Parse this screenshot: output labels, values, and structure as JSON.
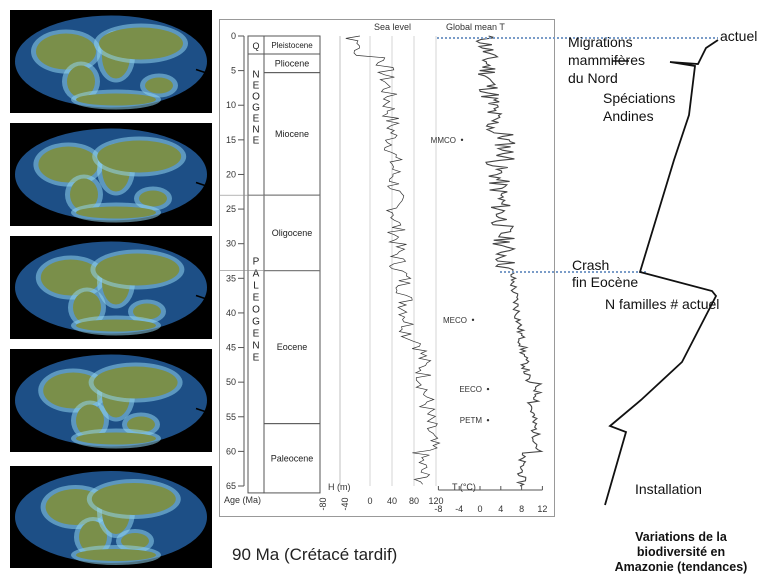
{
  "figure": {
    "age_axis_label": "Age (Ma)",
    "age_ticks": [
      "0",
      "5",
      "10",
      "15",
      "20",
      "25",
      "30",
      "35",
      "40",
      "45",
      "50",
      "55",
      "60",
      "65"
    ],
    "periods": [
      {
        "name": "Quaternary",
        "letters": "Q"
      },
      {
        "name": "Neogene",
        "letters": "N E O G E N E"
      },
      {
        "name": "Paleogene",
        "letters": "P A L E O G E N E"
      }
    ],
    "epochs": [
      {
        "label": "Pleistocene",
        "start_ma": 0,
        "end_ma": 2.6
      },
      {
        "label": "Pliocene",
        "start_ma": 2.6,
        "end_ma": 5.3
      },
      {
        "label": "Miocene",
        "start_ma": 5.3,
        "end_ma": 23
      },
      {
        "label": "Oligocene",
        "start_ma": 23,
        "end_ma": 33.9
      },
      {
        "label": "Eocene",
        "start_ma": 33.9,
        "end_ma": 56
      },
      {
        "label": "Paleocene",
        "start_ma": 56,
        "end_ma": 66
      }
    ],
    "sea_level": {
      "title": "Sea level",
      "axis_label": "H (m)",
      "ticks": [
        "-80",
        "-40",
        "0",
        "40",
        "80",
        "120"
      ]
    },
    "temperature": {
      "title": "Global mean T",
      "axis_label": "T (°C)",
      "ticks": [
        "-8",
        "-4",
        "0",
        "4",
        "8",
        "12"
      ],
      "events": [
        {
          "label": "MMCO",
          "age_ma": 15
        },
        {
          "label": "MECO",
          "age_ma": 41
        },
        {
          "label": "EECO",
          "age_ma": 51
        },
        {
          "label": "PETM",
          "age_ma": 55.5
        }
      ]
    }
  },
  "annotations": {
    "actuel": "actuel",
    "migrations": [
      "Migrations",
      "mammifères",
      "du Nord"
    ],
    "speciations": [
      "Spéciations",
      "Andines"
    ],
    "crash": [
      "Crash",
      "fin Eocène"
    ],
    "familles": "N familles # actuel",
    "installation": "Installation"
  },
  "captions": {
    "cretaceous": "90 Ma (Crétacé tardif)",
    "biodiversity": [
      "Variations de la",
      "biodiversité en",
      "Amazonie (tendances)"
    ]
  },
  "colors": {
    "ocean": "#1d4f86",
    "land": "#7a8f4a",
    "shelf": "#8fd3ef",
    "dotted_line": "#7a9cc8"
  }
}
